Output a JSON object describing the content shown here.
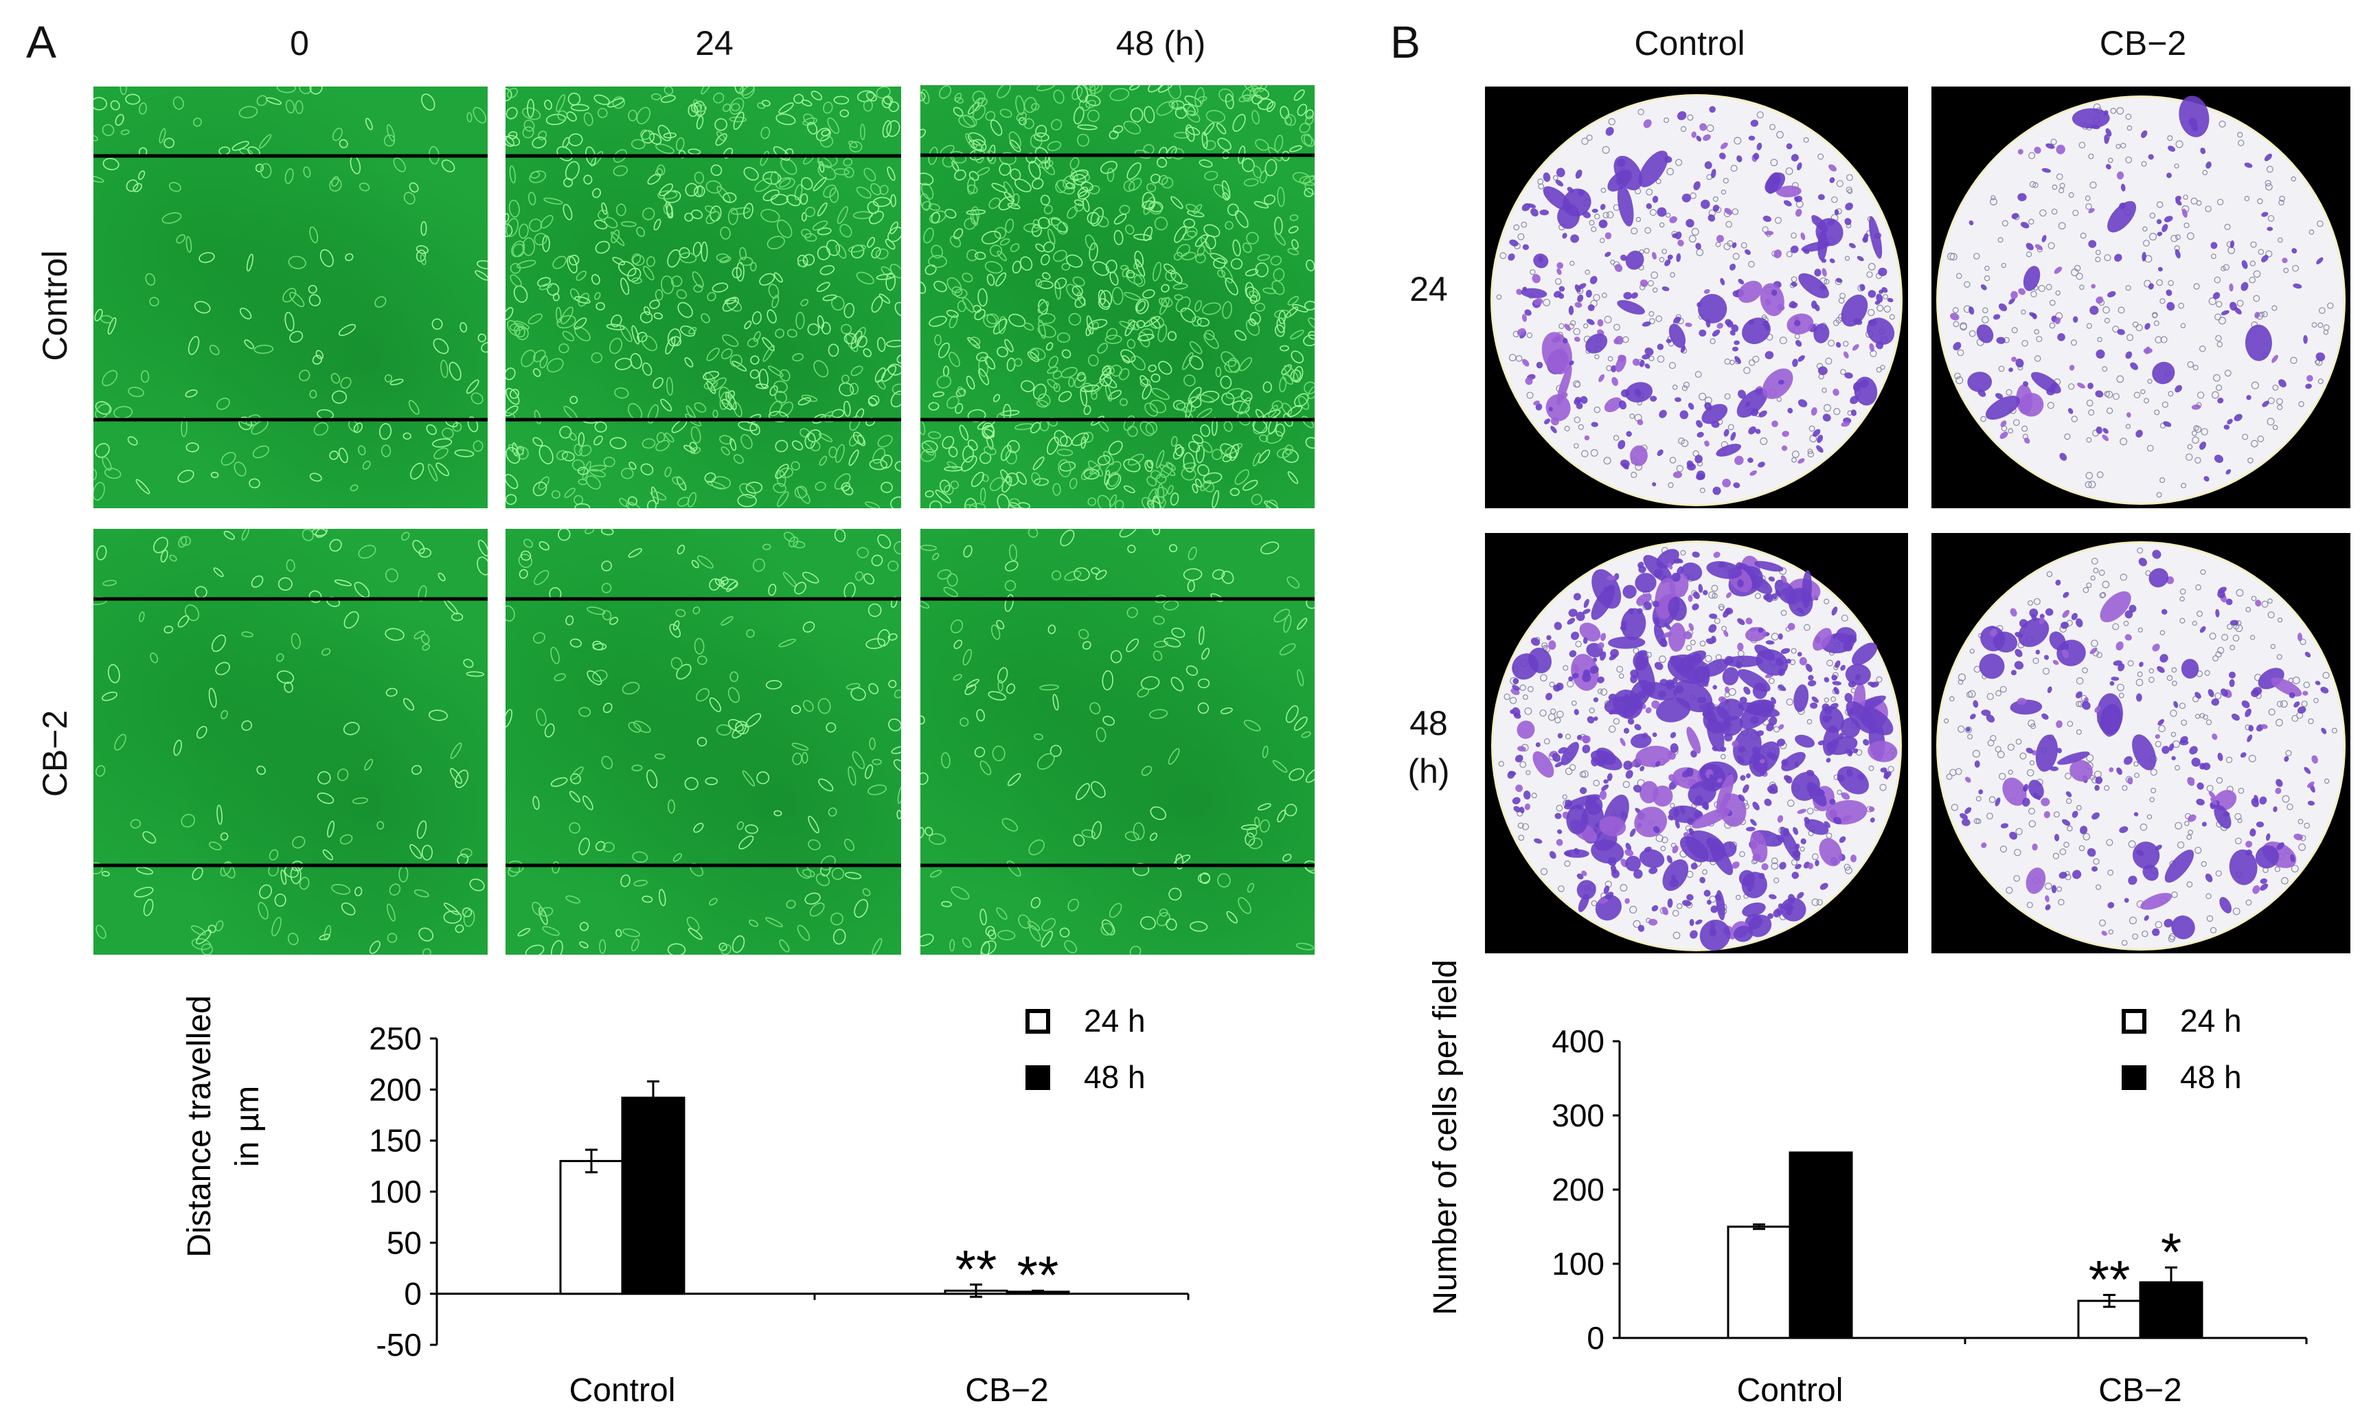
{
  "panelA": {
    "letter": "A",
    "columns": [
      "0",
      "24",
      "48 (h)"
    ],
    "rows": [
      "Control",
      "CB−2"
    ]
  },
  "panelB": {
    "letter": "B",
    "columns": [
      "Control",
      "CB−2"
    ],
    "rows": [
      "24",
      "48\n(h)"
    ]
  },
  "colors": {
    "wound_green": "#1fa53a",
    "crystal_violet": "#6a3fc6",
    "membrane": "#f2f2f6"
  },
  "chart_data": [
    {
      "type": "bar",
      "title": "",
      "ylabel": "Distance travelled in µm",
      "ylabel_lines": [
        "Distance travelled",
        "in µm"
      ],
      "categories": [
        "Control",
        "CB−2"
      ],
      "series": [
        {
          "name": "24 h",
          "fill": "white",
          "values": [
            130,
            3
          ],
          "errors": [
            11,
            6
          ]
        },
        {
          "name": "48 h",
          "fill": "black",
          "values": [
            192,
            2
          ],
          "errors": [
            16,
            1
          ]
        }
      ],
      "ylim": [
        -50,
        250
      ],
      "yticks": [
        -50,
        0,
        50,
        100,
        150,
        200,
        250
      ],
      "annotations": [
        {
          "category": "CB−2",
          "series": "24 h",
          "text": "**"
        },
        {
          "category": "CB−2",
          "series": "48 h",
          "text": "**"
        }
      ],
      "legend": "top-right",
      "grid": false
    },
    {
      "type": "bar",
      "title": "",
      "ylabel": "Number of cells per field",
      "categories": [
        "Control",
        "CB−2"
      ],
      "series": [
        {
          "name": "24 h",
          "fill": "white",
          "values": [
            150,
            50
          ],
          "errors": [
            3,
            8
          ]
        },
        {
          "name": "48 h",
          "fill": "black",
          "values": [
            250,
            75
          ],
          "errors": [
            0,
            20
          ]
        }
      ],
      "ylim": [
        0,
        400
      ],
      "yticks": [
        0,
        100,
        200,
        300,
        400
      ],
      "annotations": [
        {
          "category": "CB−2",
          "series": "24 h",
          "text": "**"
        },
        {
          "category": "CB−2",
          "series": "48 h",
          "text": "*"
        }
      ],
      "legend": "top-right",
      "grid": false
    }
  ]
}
